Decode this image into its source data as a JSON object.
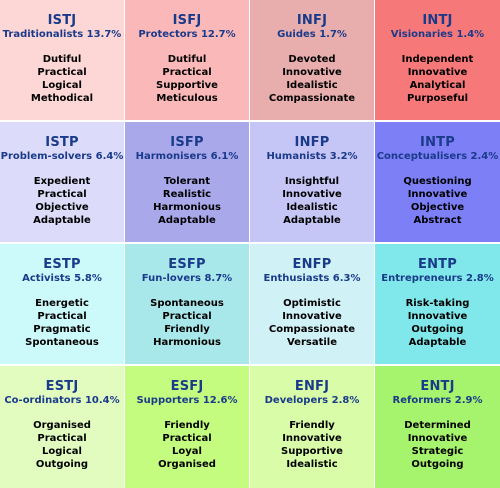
{
  "cells": [
    {
      "code": "ISTJ",
      "label": "Traditionalists 13.7%",
      "traits": [
        "Dutiful",
        "Practical",
        "Logical",
        "Methodical"
      ],
      "bg": "#fdd6d6"
    },
    {
      "code": "ISFJ",
      "label": "Protectors 12.7%",
      "traits": [
        "Dutiful",
        "Practical",
        "Supportive",
        "Meticulous"
      ],
      "bg": "#fbb8b8"
    },
    {
      "code": "INFJ",
      "label": "Guides 1.7%",
      "traits": [
        "Devoted",
        "Innovative",
        "Idealistic",
        "Compassionate"
      ],
      "bg": "#e8adad"
    },
    {
      "code": "INTJ",
      "label": "Visionaries 1.4%",
      "traits": [
        "Independent",
        "Innovative",
        "Analytical",
        "Purposeful"
      ],
      "bg": "#f77878"
    },
    {
      "code": "ISTP",
      "label": "Problem-solvers 6.4%",
      "traits": [
        "Expedient",
        "Practical",
        "Objective",
        "Adaptable"
      ],
      "bg": "#dcdcfa"
    },
    {
      "code": "ISFP",
      "label": "Harmonisers 6.1%",
      "traits": [
        "Tolerant",
        "Realistic",
        "Harmonious",
        "Adaptable"
      ],
      "bg": "#a8a8ea"
    },
    {
      "code": "INFP",
      "label": "Humanists 3.2%",
      "traits": [
        "Insightful",
        "Innovative",
        "Idealistic",
        "Adaptable"
      ],
      "bg": "#c6c6f6"
    },
    {
      "code": "INTP",
      "label": "Conceptualisers 2.4%",
      "traits": [
        "Questioning",
        "Innovative",
        "Objective",
        "Abstract"
      ],
      "bg": "#7d7ff7"
    },
    {
      "code": "ESTP",
      "label": "Activists 5.8%",
      "traits": [
        "Energetic",
        "Practical",
        "Pragmatic",
        "Spontaneous"
      ],
      "bg": "#ccfafa"
    },
    {
      "code": "ESFP",
      "label": "Fun-lovers 8.7%",
      "traits": [
        "Spontaneous",
        "Practical",
        "Friendly",
        "Harmonious"
      ],
      "bg": "#a8e8ea"
    },
    {
      "code": "ENFP",
      "label": "Enthusiasts 6.3%",
      "traits": [
        "Optimistic",
        "Innovative",
        "Compassionate",
        "Versatile"
      ],
      "bg": "#d0f2f6"
    },
    {
      "code": "ENTP",
      "label": "Entrepreneurs 2.8%",
      "traits": [
        "Risk-taking",
        "Innovative",
        "Outgoing",
        "Adaptable"
      ],
      "bg": "#80e8ea"
    },
    {
      "code": "ESTJ",
      "label": "Co-ordinators 10.4%",
      "traits": [
        "Organised",
        "Practical",
        "Logical",
        "Outgoing"
      ],
      "bg": "#e2fcc0"
    },
    {
      "code": "ESFJ",
      "label": "Supporters 12.6%",
      "traits": [
        "Friendly",
        "Practical",
        "Loyal",
        "Organised"
      ],
      "bg": "#c4fc80"
    },
    {
      "code": "ENFJ",
      "label": "Developers 2.8%",
      "traits": [
        "Friendly",
        "Innovative",
        "Supportive",
        "Idealistic"
      ],
      "bg": "#d8fca8"
    },
    {
      "code": "ENTJ",
      "label": "Reformers 2.9%",
      "traits": [
        "Determined",
        "Innovative",
        "Strategic",
        "Outgoing"
      ],
      "bg": "#a6f46e"
    }
  ]
}
